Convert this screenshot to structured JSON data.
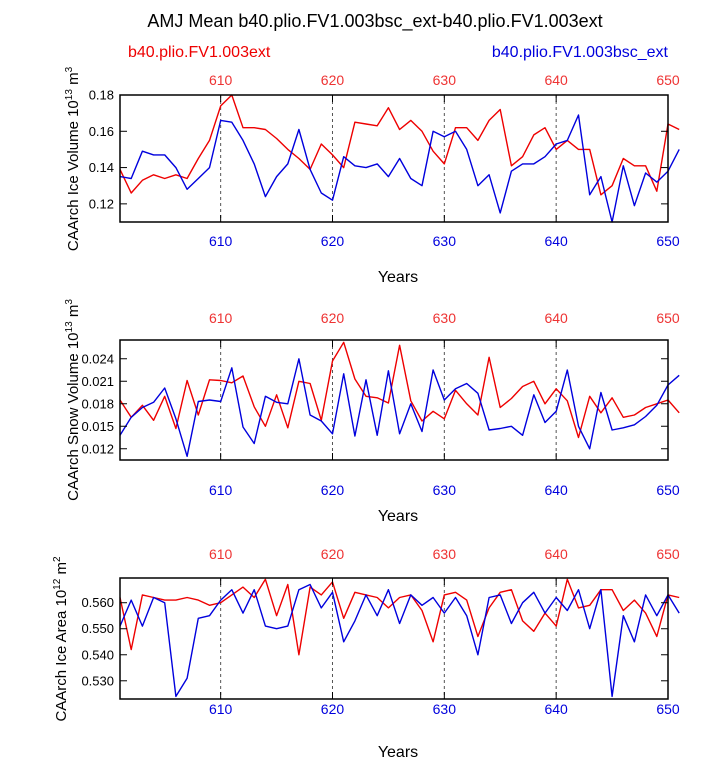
{
  "figure": {
    "title": "AMJ Mean b40.plio.FV1.003bsc_ext-b40.plio.FV1.003ext",
    "legend_left": "b40.plio.FV1.003ext",
    "legend_right": "b40.plio.FV1.003bsc_ext"
  },
  "colors": {
    "red": "#ee0000",
    "blue": "#0000dd",
    "top_ticks": "#ee3333",
    "bottom_ticks": "#0000dd"
  },
  "chart_data": [
    {
      "type": "line",
      "ylabel_main": "CAArch Ice Volume 10",
      "ylabel_exp": "13",
      "ylabel_unit": " m",
      "ylabel_unit_exp": "3",
      "xlabel": "Years",
      "xlim": [
        601,
        650
      ],
      "ylim": [
        0.11,
        0.18
      ],
      "yticks": [
        0.12,
        0.14,
        0.16,
        0.18
      ],
      "ytick_labels": [
        "0.12",
        "0.14",
        "0.16",
        "0.18"
      ],
      "xticks": [
        610,
        620,
        630,
        640,
        650
      ],
      "xtick_labels": [
        "610",
        "620",
        "630",
        "640",
        "650"
      ],
      "x_start": 601,
      "series": [
        {
          "name": "b40.plio.FV1.003ext",
          "color": "#ee0000",
          "values": [
            0.139,
            0.126,
            0.133,
            0.136,
            0.134,
            0.136,
            0.134,
            0.145,
            0.155,
            0.174,
            0.18,
            0.162,
            0.162,
            0.161,
            0.156,
            0.15,
            0.145,
            0.139,
            0.153,
            0.147,
            0.14,
            0.165,
            0.164,
            0.163,
            0.173,
            0.161,
            0.166,
            0.16,
            0.149,
            0.142,
            0.162,
            0.162,
            0.155,
            0.166,
            0.172,
            0.141,
            0.146,
            0.158,
            0.162,
            0.15,
            0.155,
            0.15,
            0.15,
            0.125,
            0.13,
            0.145,
            0.141,
            0.141,
            0.127,
            0.164,
            0.161
          ]
        },
        {
          "name": "b40.plio.FV1.003bsc_ext",
          "color": "#0000dd",
          "values": [
            0.135,
            0.134,
            0.149,
            0.147,
            0.147,
            0.14,
            0.128,
            0.134,
            0.14,
            0.166,
            0.165,
            0.155,
            0.142,
            0.124,
            0.135,
            0.142,
            0.161,
            0.139,
            0.126,
            0.122,
            0.146,
            0.141,
            0.14,
            0.142,
            0.135,
            0.145,
            0.134,
            0.13,
            0.16,
            0.157,
            0.16,
            0.15,
            0.13,
            0.136,
            0.115,
            0.138,
            0.142,
            0.142,
            0.146,
            0.153,
            0.155,
            0.169,
            0.125,
            0.135,
            0.11,
            0.141,
            0.119,
            0.137,
            0.132,
            0.138,
            0.15
          ]
        }
      ]
    },
    {
      "type": "line",
      "ylabel_main": "CAArch Snow Volume 10",
      "ylabel_exp": "13",
      "ylabel_unit": " m",
      "ylabel_unit_exp": "3",
      "xlabel": "Years",
      "xlim": [
        601,
        650
      ],
      "ylim": [
        0.0105,
        0.0265
      ],
      "yticks": [
        0.012,
        0.015,
        0.018,
        0.021,
        0.024
      ],
      "ytick_labels": [
        "0.012",
        "0.015",
        "0.018",
        "0.021",
        "0.024"
      ],
      "xticks": [
        610,
        620,
        630,
        640,
        650
      ],
      "xtick_labels": [
        "610",
        "620",
        "630",
        "640",
        "650"
      ],
      "x_start": 601,
      "series": [
        {
          "name": "b40.plio.FV1.003ext",
          "color": "#ee0000",
          "values": [
            0.0185,
            0.0162,
            0.0178,
            0.0158,
            0.019,
            0.0147,
            0.0211,
            0.0165,
            0.0212,
            0.0211,
            0.0208,
            0.0217,
            0.0176,
            0.015,
            0.0192,
            0.0148,
            0.021,
            0.0207,
            0.0158,
            0.0237,
            0.0262,
            0.0213,
            0.019,
            0.0188,
            0.0181,
            0.0258,
            0.0184,
            0.0157,
            0.017,
            0.016,
            0.0198,
            0.018,
            0.0165,
            0.0242,
            0.0175,
            0.0187,
            0.0203,
            0.021,
            0.018,
            0.02,
            0.0184,
            0.0135,
            0.019,
            0.0168,
            0.0188,
            0.0162,
            0.0165,
            0.0175,
            0.018,
            0.0185,
            0.0168
          ]
        },
        {
          "name": "b40.plio.FV1.003bsc_ext",
          "color": "#0000dd",
          "values": [
            0.0138,
            0.0162,
            0.0175,
            0.0182,
            0.0201,
            0.016,
            0.011,
            0.0183,
            0.0185,
            0.0183,
            0.0228,
            0.0149,
            0.0127,
            0.019,
            0.0182,
            0.018,
            0.024,
            0.0165,
            0.0157,
            0.014,
            0.022,
            0.0137,
            0.0212,
            0.0138,
            0.0224,
            0.014,
            0.018,
            0.0143,
            0.0225,
            0.0185,
            0.02,
            0.0207,
            0.0194,
            0.0145,
            0.0147,
            0.015,
            0.0138,
            0.0192,
            0.0155,
            0.017,
            0.0225,
            0.015,
            0.012,
            0.0195,
            0.0145,
            0.0148,
            0.0152,
            0.0163,
            0.0178,
            0.0205,
            0.0218
          ]
        }
      ]
    },
    {
      "type": "line",
      "ylabel_main": "CAArch Ice Area 10",
      "ylabel_exp": "12",
      "ylabel_unit": " m",
      "ylabel_unit_exp": "2",
      "xlabel": "Years",
      "xlim": [
        601,
        650
      ],
      "ylim": [
        0.523,
        0.5695
      ],
      "yticks": [
        0.53,
        0.54,
        0.55,
        0.56
      ],
      "ytick_labels": [
        "0.530",
        "0.540",
        "0.550",
        "0.560"
      ],
      "xticks": [
        610,
        620,
        630,
        640,
        650
      ],
      "xtick_labels": [
        "610",
        "620",
        "630",
        "640",
        "650"
      ],
      "x_start": 601,
      "series": [
        {
          "name": "b40.plio.FV1.003ext",
          "color": "#ee0000",
          "values": [
            0.562,
            0.542,
            0.563,
            0.562,
            0.561,
            0.561,
            0.562,
            0.561,
            0.559,
            0.56,
            0.563,
            0.566,
            0.562,
            0.569,
            0.555,
            0.567,
            0.54,
            0.566,
            0.563,
            0.568,
            0.554,
            0.564,
            0.563,
            0.562,
            0.558,
            0.562,
            0.563,
            0.557,
            0.545,
            0.563,
            0.564,
            0.561,
            0.547,
            0.558,
            0.564,
            0.565,
            0.553,
            0.549,
            0.556,
            0.551,
            0.569,
            0.558,
            0.559,
            0.565,
            0.565,
            0.557,
            0.561,
            0.556,
            0.547,
            0.563,
            0.562
          ]
        },
        {
          "name": "b40.plio.FV1.003bsc_ext",
          "color": "#0000dd",
          "values": [
            0.551,
            0.561,
            0.551,
            0.562,
            0.56,
            0.524,
            0.531,
            0.554,
            0.555,
            0.561,
            0.565,
            0.556,
            0.565,
            0.551,
            0.55,
            0.551,
            0.565,
            0.567,
            0.558,
            0.564,
            0.545,
            0.553,
            0.563,
            0.555,
            0.565,
            0.552,
            0.563,
            0.559,
            0.562,
            0.556,
            0.562,
            0.555,
            0.54,
            0.562,
            0.563,
            0.552,
            0.56,
            0.564,
            0.556,
            0.562,
            0.557,
            0.565,
            0.55,
            0.565,
            0.524,
            0.555,
            0.545,
            0.563,
            0.555,
            0.563,
            0.556
          ]
        }
      ]
    }
  ]
}
